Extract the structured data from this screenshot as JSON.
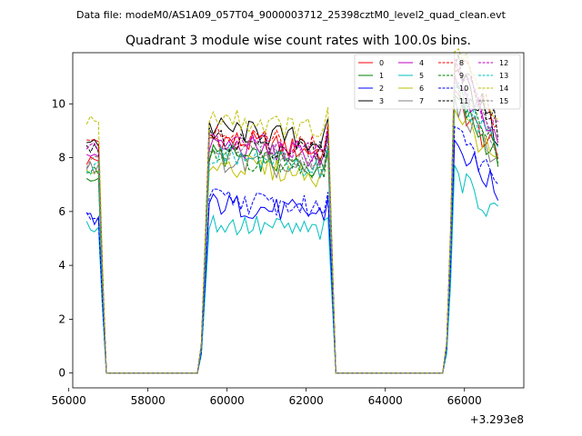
{
  "chart_data": {
    "type": "line",
    "suptitle": "Data file: modeM0/AS1A09_057T04_9000003712_25398cztM0_level2_quad_clean.evt",
    "title": "Quadrant 3 module wise count rates with 100.0s bins.",
    "xlabel": "",
    "ylabel": "",
    "x_offset_label": "+3.293e8",
    "xlim": [
      56100,
      67500
    ],
    "ylim": [
      -0.55,
      11.9
    ],
    "x_ticks": [
      56000,
      58000,
      60000,
      62000,
      64000,
      66000
    ],
    "x_tick_labels": [
      "56000",
      "58000",
      "60000",
      "62000",
      "64000",
      "66000"
    ],
    "y_ticks": [
      0,
      2,
      4,
      6,
      8,
      10
    ],
    "y_tick_labels": [
      "0",
      "2",
      "4",
      "6",
      "8",
      "10"
    ],
    "legend_position": "top-right",
    "segments": [
      {
        "start": 56450,
        "n": 5
      },
      {
        "start": 59350,
        "n": 33
      },
      {
        "start": 65550,
        "n": 14
      }
    ],
    "gap_edges": [
      [
        56950,
        59250
      ],
      [
        62750,
        65450
      ]
    ],
    "series": [
      {
        "name": "0",
        "color": "#ff0000",
        "dash": "solid",
        "levels": [
          7.9,
          8.6,
          8.3
        ]
      },
      {
        "name": "1",
        "color": "#008000",
        "dash": "solid",
        "levels": [
          7.2,
          8.0,
          8.3
        ]
      },
      {
        "name": "2",
        "color": "#0000ff",
        "dash": "solid",
        "levels": [
          5.7,
          6.2,
          7.0
        ]
      },
      {
        "name": "3",
        "color": "#000000",
        "dash": "solid",
        "levels": [
          8.5,
          9.0,
          9.2
        ]
      },
      {
        "name": "4",
        "color": "#bf00bf",
        "dash": "solid",
        "levels": [
          8.0,
          8.4,
          9.0
        ]
      },
      {
        "name": "5",
        "color": "#00bfbf",
        "dash": "solid",
        "levels": [
          5.4,
          5.5,
          6.0
        ]
      },
      {
        "name": "6",
        "color": "#bfbf00",
        "dash": "solid",
        "levels": [
          7.4,
          7.7,
          8.0
        ]
      },
      {
        "name": "7",
        "color": "#808080",
        "dash": "solid",
        "levels": [
          7.6,
          7.8,
          8.2
        ]
      },
      {
        "name": "8",
        "color": "#ff0000",
        "dash": "dashed",
        "levels": [
          8.8,
          8.8,
          9.6
        ]
      },
      {
        "name": "9",
        "color": "#008000",
        "dash": "dashed",
        "levels": [
          7.4,
          8.0,
          8.6
        ]
      },
      {
        "name": "10",
        "color": "#0000ff",
        "dash": "dashed",
        "levels": [
          5.9,
          6.4,
          7.3
        ]
      },
      {
        "name": "11",
        "color": "#000000",
        "dash": "dashed",
        "levels": [
          8.3,
          8.6,
          9.5
        ]
      },
      {
        "name": "12",
        "color": "#bf00bf",
        "dash": "dashed",
        "levels": [
          8.3,
          8.6,
          9.3
        ]
      },
      {
        "name": "13",
        "color": "#00bfbf",
        "dash": "dashed",
        "levels": [
          7.6,
          8.0,
          8.6
        ]
      },
      {
        "name": "14",
        "color": "#bfbf00",
        "dash": "dashed",
        "levels": [
          9.3,
          9.4,
          10.0
        ]
      },
      {
        "name": "15",
        "color": "#808080",
        "dash": "dashed",
        "levels": [
          7.8,
          8.3,
          8.8
        ]
      }
    ]
  }
}
